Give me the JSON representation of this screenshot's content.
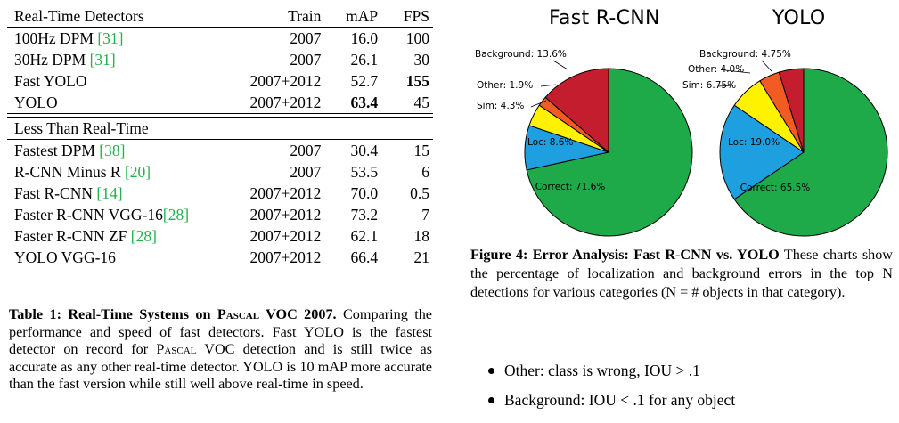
{
  "table": {
    "header": {
      "name": "Real-Time Detectors",
      "train": "Train",
      "map": "mAP",
      "fps": "FPS"
    },
    "realtime_rows": [
      {
        "name": "100Hz DPM ",
        "ref": "[31]",
        "train": "2007",
        "map": "16.0",
        "fps": "100"
      },
      {
        "name": "30Hz DPM ",
        "ref": "[31]",
        "train": "2007",
        "map": "26.1",
        "fps": "30"
      },
      {
        "name": "Fast YOLO",
        "ref": "",
        "train": "2007+2012",
        "map": "52.7",
        "fps": "155"
      },
      {
        "name": "YOLO",
        "ref": "",
        "train": "2007+2012",
        "map": "63.4",
        "fps": "45"
      }
    ],
    "section2_header": "Less Than Real-Time",
    "slow_rows": [
      {
        "name": "Fastest DPM ",
        "ref": "[38]",
        "train": "2007",
        "map": "30.4",
        "fps": "15"
      },
      {
        "name": "R-CNN Minus R ",
        "ref": "[20]",
        "train": "2007",
        "map": "53.5",
        "fps": "6"
      },
      {
        "name": "Fast R-CNN ",
        "ref": "[14]",
        "train": "2007+2012",
        "map": "70.0",
        "fps": "0.5"
      },
      {
        "name": "Faster R-CNN VGG-16",
        "ref": "[28]",
        "train": "2007+2012",
        "map": "73.2",
        "fps": "7"
      },
      {
        "name": "Faster R-CNN ZF ",
        "ref": "[28]",
        "train": "2007+2012",
        "map": "62.1",
        "fps": "18"
      },
      {
        "name": "YOLO VGG-16",
        "ref": "",
        "train": "2007+2012",
        "map": "66.4",
        "fps": "21"
      }
    ]
  },
  "caption1": {
    "lead_prefix": "Table 1: Real-Time Systems on P",
    "lead_sc": "ascal",
    "lead_suffix": " VOC 2007.",
    "text_a": " Comparing the performance and speed of fast detectors. Fast YOLO is the fastest detector on record for P",
    "text_sc": "ascal",
    "text_b": " VOC detection and is still twice as accurate as any other real-time detector. YOLO is 10 mAP more accurate than the fast version while still well above real-time in speed."
  },
  "figure": {
    "titles": [
      "Fast R-CNN",
      "YOLO"
    ],
    "pies": [
      {
        "name": "Fast R-CNN",
        "slices": [
          {
            "label": "Correct: 71.6%",
            "value": 71.6,
            "color": "#1faa4a"
          },
          {
            "label": "Loc: 8.6%",
            "value": 8.6,
            "color": "#1e9fe0"
          },
          {
            "label": "Sim: 4.3%",
            "value": 4.3,
            "color": "#fff200"
          },
          {
            "label": "Other: 1.9%",
            "value": 1.9,
            "color": "#f25c22"
          },
          {
            "label": "Background: 13.6%",
            "value": 13.6,
            "color": "#c41e2e"
          }
        ]
      },
      {
        "name": "YOLO",
        "slices": [
          {
            "label": "Correct: 65.5%",
            "value": 65.5,
            "color": "#1faa4a"
          },
          {
            "label": "Loc: 19.0%",
            "value": 19.0,
            "color": "#1e9fe0"
          },
          {
            "label": "Sim: 6.75%",
            "value": 6.75,
            "color": "#fff200"
          },
          {
            "label": "Other: 4.0%",
            "value": 4.0,
            "color": "#f25c22"
          },
          {
            "label": "Background: 4.75%",
            "value": 4.75,
            "color": "#c41e2e"
          }
        ]
      }
    ]
  },
  "caption2": {
    "lead": "Figure 4: Error Analysis: Fast R-CNN vs. YOLO",
    "text": " These charts show the percentage of localization and background errors in the top N detections for various categories (N = # objects in that category)."
  },
  "bullets": [
    "Other: class is wrong, IOU > .1",
    "Background: IOU < .1 for any object"
  ]
}
